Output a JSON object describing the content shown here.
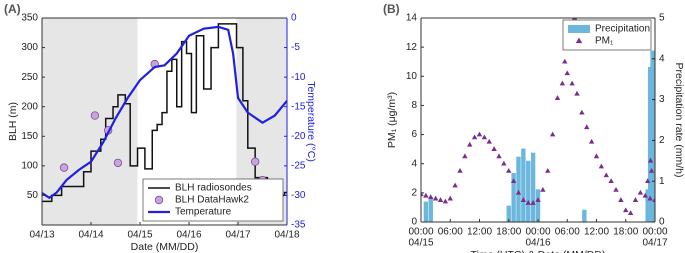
{
  "chart_data": [
    {
      "type": "line",
      "panel_label": "(A)",
      "xlabel": "Date (MM/DD)",
      "ylabel": "BLH (m)",
      "y2label": "Temperature (°C)",
      "y2_color": "#2020e0",
      "xlim": [
        13,
        18
      ],
      "xticks": [
        {
          "value": 13,
          "label": "04/13"
        },
        {
          "value": 14,
          "label": "04/14"
        },
        {
          "value": 15,
          "label": "04/15"
        },
        {
          "value": 16,
          "label": "04/16"
        },
        {
          "value": 17,
          "label": "04/17"
        },
        {
          "value": 18,
          "label": "04/18"
        }
      ],
      "ylim": [
        0,
        350
      ],
      "yticks": [
        50,
        100,
        150,
        200,
        250,
        300,
        350
      ],
      "y2lim": [
        -35,
        0
      ],
      "y2ticks": [
        -35,
        -30,
        -25,
        -20,
        -15,
        -10,
        -5,
        0
      ],
      "shaded_regions": [
        [
          13,
          14.95
        ],
        [
          16.97,
          18
        ]
      ],
      "shade_color": "#e6e6e6",
      "legend": "lower right",
      "series": [
        {
          "name": "BLH radiosondes",
          "kind": "step",
          "color": "#111111",
          "x": [
            13.0,
            13.2,
            13.4,
            13.85,
            14.0,
            14.2,
            14.3,
            14.45,
            14.55,
            14.7,
            14.8,
            14.95,
            15.1,
            15.25,
            15.35,
            15.45,
            15.55,
            15.65,
            15.75,
            15.85,
            15.95,
            16.05,
            16.15,
            16.3,
            16.45,
            16.6,
            16.8,
            16.97,
            17.1,
            17.2,
            17.35,
            17.6,
            17.8,
            17.95,
            18.0
          ],
          "values": [
            40,
            50,
            65,
            90,
            125,
            145,
            180,
            200,
            220,
            205,
            100,
            130,
            95,
            160,
            170,
            190,
            260,
            280,
            200,
            310,
            290,
            190,
            320,
            230,
            300,
            340,
            340,
            300,
            210,
            130,
            80,
            60,
            50,
            55,
            55
          ]
        },
        {
          "name": "BLH DataHawk2",
          "kind": "scatter",
          "marker": "circle",
          "color": "#c9a4dc",
          "x": [
            13.45,
            14.08,
            14.35,
            14.55,
            15.3,
            17.35,
            17.5
          ],
          "values": [
            97,
            185,
            160,
            105,
            272,
            107,
            76
          ]
        },
        {
          "name": "Temperature",
          "kind": "line",
          "axis": "y2",
          "color": "#2020e0",
          "x": [
            13.0,
            13.15,
            13.3,
            13.5,
            13.75,
            14.0,
            14.25,
            14.5,
            14.75,
            15.0,
            15.3,
            15.5,
            15.75,
            16.0,
            16.3,
            16.6,
            16.8,
            16.9,
            17.0,
            17.2,
            17.5,
            17.75,
            18.0
          ],
          "values": [
            -29.6,
            -30.4,
            -29.5,
            -27.4,
            -25.7,
            -24.3,
            -21,
            -17,
            -13.5,
            -10.5,
            -8.3,
            -8,
            -6,
            -3,
            -1.8,
            -1.5,
            -2,
            -6,
            -13.5,
            -16,
            -17.7,
            -16.5,
            -14
          ]
        }
      ]
    },
    {
      "type": "scatter",
      "panel_label": "(B)",
      "xlabel": "Time (UTC) & Date (MM/DD)",
      "ylabel": "PM₁ (μg/m³)",
      "y2label": "Precipitation rate (mm/h)",
      "legend": "upper right",
      "xlim": [
        0,
        48
      ],
      "xticks": [
        {
          "value": 0,
          "label": "00:00"
        },
        {
          "value": 6,
          "label": "06:00"
        },
        {
          "value": 12,
          "label": "12:00"
        },
        {
          "value": 18,
          "label": "18:00"
        },
        {
          "value": 24,
          "label": "00:00"
        },
        {
          "value": 30,
          "label": "06:00"
        },
        {
          "value": 36,
          "label": "12:00"
        },
        {
          "value": 42,
          "label": "18:00"
        },
        {
          "value": 48,
          "label": "00:00"
        }
      ],
      "xdate_labels": [
        {
          "value": 0,
          "label": "04/15"
        },
        {
          "value": 24,
          "label": "04/16"
        },
        {
          "value": 48,
          "label": "04/17"
        }
      ],
      "ylim": [
        0,
        14
      ],
      "yticks": [
        0,
        2,
        4,
        6,
        8,
        10,
        12,
        14
      ],
      "y2lim": [
        0,
        5
      ],
      "y2ticks": [
        0,
        1,
        2,
        3,
        4,
        5
      ],
      "series": [
        {
          "name": "Precipitation",
          "kind": "bar",
          "axis": "y2",
          "color": "#6bb7de",
          "x": [
            1,
            2,
            18,
            19,
            20,
            21,
            22,
            23,
            24,
            33.5,
            46.5,
            47,
            47.5
          ],
          "values": [
            0.5,
            0.6,
            0.4,
            1.2,
            1.6,
            1.8,
            1.5,
            1.7,
            0.8,
            0.3,
            0.8,
            3.8,
            4.2
          ]
        },
        {
          "name": "PM₁",
          "kind": "scatter",
          "marker": "triangle",
          "color": "#7b2d8e",
          "x": [
            0,
            1,
            2,
            3,
            4,
            5,
            6,
            7,
            8,
            9,
            10,
            11,
            12,
            13,
            14,
            15,
            16,
            17,
            18,
            19,
            20,
            21,
            22,
            23,
            24,
            25,
            26,
            27,
            28,
            29,
            30,
            31,
            32,
            33,
            34,
            35,
            36,
            37,
            38,
            39,
            40,
            41,
            42,
            43,
            44,
            45,
            46,
            47,
            48,
            31.5,
            29.5,
            47.1,
            47.3,
            46.5
          ],
          "values": [
            1.9,
            1.8,
            1.7,
            1.6,
            1.5,
            1.4,
            1.6,
            2.5,
            3.5,
            4.5,
            5.3,
            5.8,
            6.0,
            5.8,
            5.5,
            5.0,
            4.5,
            4.0,
            3.5,
            2.8,
            2.0,
            1.5,
            1.3,
            1.3,
            1.5,
            2.2,
            3.5,
            6.0,
            8.5,
            9.5,
            10.2,
            9.5,
            8.8,
            7.5,
            6.5,
            5.5,
            4.5,
            3.8,
            3.2,
            2.8,
            2.2,
            1.5,
            0.8,
            0.6,
            1.5,
            2.0,
            1.8,
            1.6,
            1.5,
            14,
            11,
            4.2,
            3.5,
            2.8
          ]
        }
      ]
    }
  ]
}
